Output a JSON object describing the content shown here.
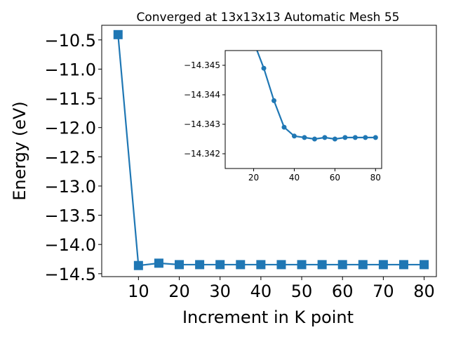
{
  "chart_data": [
    {
      "type": "line",
      "title": "Converged at 13x13x13 Automatic Mesh 55",
      "xlabel": "Increment in K point",
      "ylabel": "Energy (eV)",
      "marker": "square",
      "color": "#1f77b4",
      "grid": false,
      "xlim": [
        1,
        83
      ],
      "ylim": [
        -14.55,
        -10.25
      ],
      "xticks": [
        10,
        20,
        30,
        40,
        50,
        60,
        70,
        80
      ],
      "yticks": [
        -10.5,
        -11.0,
        -11.5,
        -12.0,
        -12.5,
        -13.0,
        -13.5,
        -14.0,
        -14.5
      ],
      "ytick_labels": [
        "−10.5",
        "−11.0",
        "−11.5",
        "−12.0",
        "−12.5",
        "−13.0",
        "−13.5",
        "−14.0",
        "−14.5"
      ],
      "series": [
        {
          "x": [
            5,
            10,
            15,
            20,
            25,
            30,
            35,
            40,
            45,
            50,
            55,
            60,
            65,
            70,
            75,
            80
          ],
          "y": [
            -10.41,
            -14.36,
            -14.32,
            -14.345,
            -14.345,
            -14.345,
            -14.345,
            -14.345,
            -14.345,
            -14.345,
            -14.345,
            -14.345,
            -14.345,
            -14.345,
            -14.345,
            -14.345
          ]
        }
      ]
    },
    {
      "type": "line",
      "title": "",
      "marker": "circle",
      "color": "#1f77b4",
      "grid": false,
      "inset": true,
      "xlim": [
        6,
        83
      ],
      "ylim": [
        -14.3415,
        -14.3455
      ],
      "xticks": [
        20,
        40,
        60,
        80
      ],
      "yticks": [
        -14.345,
        -14.344,
        -14.343,
        -14.342
      ],
      "ytick_labels": [
        "−14.345",
        "−14.344",
        "−14.343",
        "−14.342"
      ],
      "series": [
        {
          "x": [
            20,
            25,
            30,
            35,
            40,
            45,
            50,
            55,
            60,
            65,
            70,
            75,
            80
          ],
          "y": [
            -14.3458,
            -14.3449,
            -14.3438,
            -14.3429,
            -14.3426,
            -14.34255,
            -14.3425,
            -14.34255,
            -14.3425,
            -14.34255,
            -14.34255,
            -14.34255,
            -14.34255
          ]
        }
      ]
    }
  ]
}
